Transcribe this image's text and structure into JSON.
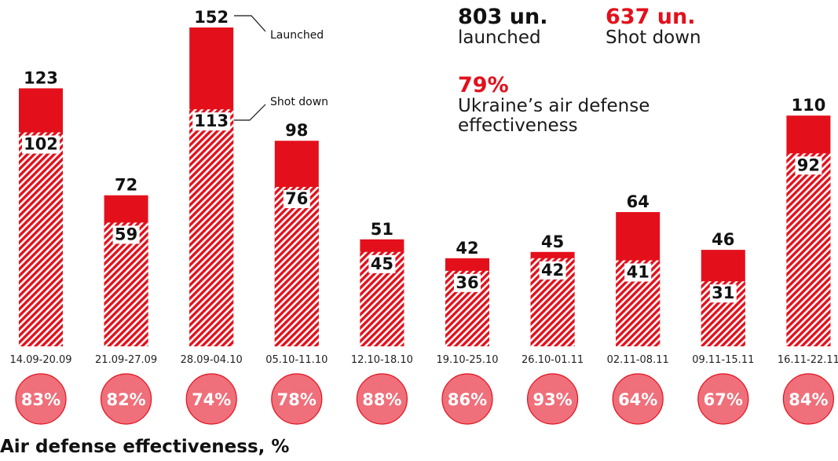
{
  "summary": {
    "launched_value": "803 un.",
    "launched_label": "launched",
    "shot_value": "637 un.",
    "shot_label": "Shot down",
    "effectiveness_value": "79%",
    "effectiveness_label_line1": "Ukraine’s air defense",
    "effectiveness_label_line2": "effectiveness"
  },
  "annotations": {
    "launched": "Launched",
    "shot_down": "Shot down"
  },
  "footer": {
    "title": "Air defense effectiveness, %"
  },
  "colors": {
    "launched_fill": "#e3101b",
    "shot_hatch": "#e3101b",
    "circle_fill": "#ef6f7a",
    "circle_stroke": "#e3101b"
  },
  "chart_data": {
    "type": "bar",
    "categories": [
      "14.09-20.09",
      "21.09-27.09",
      "28.09-04.10",
      "05.10-11.10",
      "12.10-18.10",
      "19.10-25.10",
      "26.10-01.11",
      "02.11-08.11",
      "09.11-15.11",
      "16.11-22.11"
    ],
    "series": [
      {
        "name": "Launched",
        "values": [
          123,
          72,
          152,
          98,
          51,
          42,
          45,
          64,
          46,
          110
        ]
      },
      {
        "name": "Shot down",
        "values": [
          102,
          59,
          113,
          76,
          45,
          36,
          42,
          41,
          31,
          92
        ]
      }
    ],
    "effectiveness": [
      "83%",
      "82%",
      "74%",
      "78%",
      "88%",
      "86%",
      "93%",
      "64%",
      "67%",
      "84%"
    ],
    "title": "",
    "xlabel": "",
    "ylabel": "",
    "ylim": [
      0,
      152
    ],
    "grid": false
  }
}
